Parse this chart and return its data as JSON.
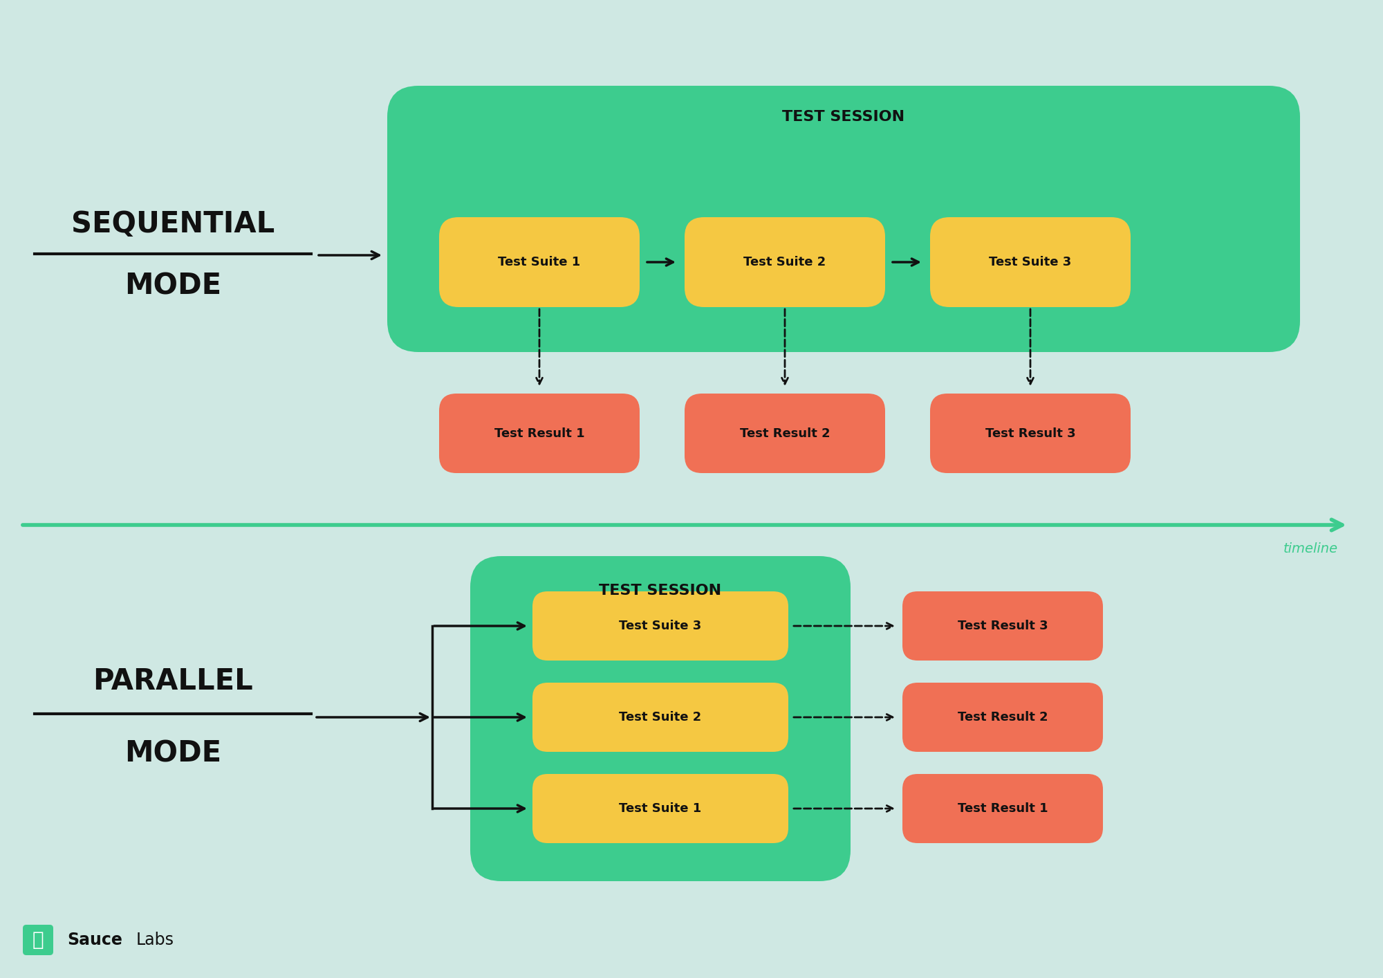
{
  "bg_color": "#cfe8e3",
  "green_session": "#3dcc8e",
  "yellow_suite": "#f5c842",
  "orange_result": "#f07055",
  "black_text": "#111111",
  "green_timeline": "#3dcc8e",
  "green_logo": "#3dcc8e",
  "seq_line1": "SEQUENTIAL",
  "seq_line2": "MODE",
  "par_line1": "PARALLEL",
  "par_line2": "MODE",
  "session_label": "TEST SESSION",
  "suite_labels": [
    "Test Suite 1",
    "Test Suite 2",
    "Test Suite 3"
  ],
  "result_labels": [
    "Test Result 1",
    "Test Result 2",
    "Test Result 3"
  ],
  "timeline_text": "timeline",
  "sauce_text": "Sauce",
  "labs_text": "Labs"
}
